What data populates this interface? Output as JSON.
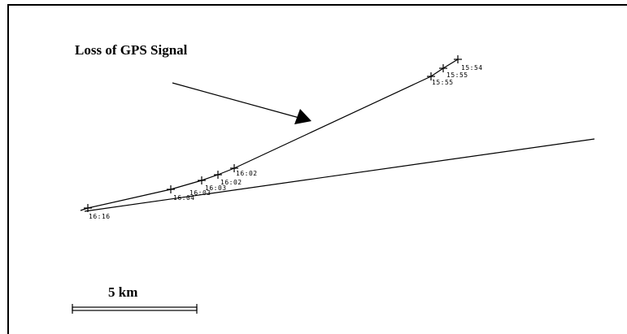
{
  "annotation": {
    "text": "Loss of GPS Signal"
  },
  "scale_bar": {
    "label": "5 km"
  },
  "waypoints": [
    {
      "id": "wp-1554",
      "time": "15:54"
    },
    {
      "id": "wp-1555a",
      "time": "15:55"
    },
    {
      "id": "wp-1555b",
      "time": "15:55"
    },
    {
      "id": "wp-1602a",
      "time": "16:02"
    },
    {
      "id": "wp-1602b",
      "time": "16:02"
    },
    {
      "id": "wp-1603",
      "time": "16:03"
    },
    {
      "id": "wp-1603b",
      "time": "16:03"
    },
    {
      "id": "wp-1604",
      "time": "16:04"
    },
    {
      "id": "wp-1616",
      "time": "16:16"
    }
  ]
}
